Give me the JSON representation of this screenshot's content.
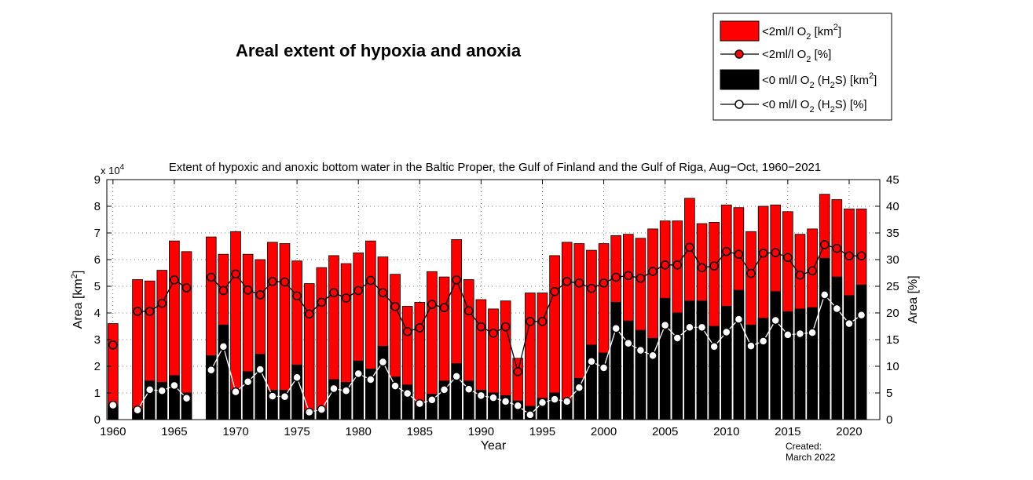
{
  "page_title": "Areal extent of hypoxia and anoxia",
  "created_label": "Created:",
  "created_date": "March 2022",
  "legend": {
    "red_area": {
      "main": "<2ml/l O",
      "sub": "2",
      "tail1": " [km",
      "sup": "2",
      "tail2": "]"
    },
    "red_pct": {
      "main": "<2ml/l O",
      "sub": "2",
      "tail": " [%]"
    },
    "black_area": {
      "main": "<0 ml/l O",
      "sub1": "2",
      "mid": " (H",
      "sub2": "2",
      "mid2": "S) [km",
      "sup": "2",
      "tail": "]"
    },
    "white_pct": {
      "main": "<0 ml/l O",
      "sub1": "2",
      "mid": " (H",
      "sub2": "2",
      "tail": "S) [%]"
    }
  },
  "colors": {
    "hypoxia": "#ff0000",
    "anoxia": "#000000",
    "line": "#000000",
    "white_marker": "#ffffff"
  },
  "chart_data": {
    "type": "bar",
    "title": "Extent of hypoxic and anoxic bottom water in the Baltic Proper, the Gulf of Finland and the Gulf of Riga, Aug−Oct, 1960−2021",
    "xlabel": "Year",
    "ylabel": {
      "text": "Area [km",
      "sup": "2",
      "tail": "]"
    },
    "y2label": "Area [%]",
    "multiplier_label": {
      "base": "x 10",
      "exp": "4"
    },
    "xlim": [
      1959.5,
      2022.5
    ],
    "ylim": [
      0,
      9
    ],
    "y2lim": [
      0,
      45
    ],
    "x_ticks": [
      1960,
      1965,
      1970,
      1975,
      1980,
      1985,
      1990,
      1995,
      2000,
      2005,
      2010,
      2015,
      2020
    ],
    "y_ticks": [
      0,
      1,
      2,
      3,
      4,
      5,
      6,
      7,
      8,
      9
    ],
    "y2_ticks": [
      0,
      5,
      10,
      15,
      20,
      25,
      30,
      35,
      40,
      45
    ],
    "grid": "dotted",
    "legend_position": "top-right",
    "series": [
      {
        "name": "<2ml/l O2 [km2]",
        "type": "bar",
        "color": "#ff0000",
        "values": [
          3.6,
          null,
          5.25,
          5.2,
          5.6,
          6.7,
          6.3,
          null,
          6.85,
          6.2,
          7.05,
          6.2,
          6.0,
          6.65,
          6.6,
          5.95,
          5.1,
          5.7,
          6.15,
          5.85,
          6.25,
          6.7,
          6.1,
          5.45,
          4.25,
          4.4,
          5.55,
          5.35,
          6.75,
          5.25,
          4.5,
          4.15,
          4.45,
          2.3,
          4.75,
          4.75,
          6.15,
          6.65,
          6.6,
          6.35,
          6.6,
          6.9,
          6.95,
          6.8,
          7.15,
          7.45,
          7.45,
          8.3,
          7.35,
          7.4,
          8.05,
          7.95,
          7.05,
          8.0,
          8.05,
          7.8,
          6.95,
          7.15,
          8.45,
          8.25,
          7.9,
          7.9
        ]
      },
      {
        "name": "<0 ml/l O2 (H2S) [km2]",
        "type": "bar",
        "color": "#000000",
        "values": [
          0.5,
          null,
          0.4,
          1.45,
          1.4,
          1.65,
          1.0,
          null,
          2.4,
          3.55,
          1.1,
          1.8,
          2.45,
          1.1,
          1.1,
          2.05,
          0.3,
          0.35,
          1.5,
          1.4,
          2.2,
          1.9,
          2.75,
          1.6,
          1.3,
          0.6,
          0.95,
          1.45,
          2.1,
          1.45,
          1.1,
          1.0,
          0.9,
          0.7,
          0.5,
          0.8,
          1.0,
          0.7,
          1.55,
          2.8,
          2.5,
          4.4,
          3.7,
          3.35,
          3.05,
          4.55,
          4.0,
          4.45,
          4.45,
          3.5,
          4.25,
          4.85,
          3.55,
          3.8,
          4.8,
          4.05,
          4.15,
          4.2,
          6.05,
          5.35,
          4.65,
          5.05
        ]
      },
      {
        "name": "<2ml/l O2 [%]",
        "type": "line",
        "color": "#ff0000",
        "values": [
          14.0,
          null,
          20.3,
          20.3,
          21.8,
          26.2,
          24.7,
          null,
          26.7,
          24.2,
          27.3,
          24.3,
          23.4,
          25.9,
          25.8,
          23.2,
          19.8,
          22.0,
          23.8,
          22.8,
          24.2,
          26.1,
          23.8,
          21.2,
          16.5,
          17.2,
          21.6,
          21.0,
          26.2,
          20.4,
          17.4,
          16.2,
          17.4,
          9.0,
          18.4,
          18.4,
          24.0,
          25.9,
          25.6,
          24.6,
          25.6,
          26.7,
          27.0,
          26.5,
          27.8,
          29.0,
          29.0,
          32.3,
          28.5,
          28.8,
          31.5,
          31.0,
          27.4,
          31.2,
          31.3,
          30.4,
          27.1,
          27.9,
          32.8,
          32.1,
          30.7,
          30.7
        ]
      },
      {
        "name": "<0 ml/l O2 (H2S) [%]",
        "type": "line",
        "color": "#ffffff",
        "values": [
          2.7,
          null,
          1.8,
          5.6,
          5.4,
          6.4,
          4.0,
          null,
          9.3,
          13.7,
          5.2,
          7.1,
          9.4,
          4.4,
          4.3,
          7.9,
          1.4,
          1.9,
          5.8,
          5.4,
          8.6,
          7.5,
          10.8,
          6.3,
          4.9,
          3.0,
          3.7,
          5.6,
          8.1,
          5.7,
          4.5,
          4.1,
          3.4,
          2.6,
          0.9,
          3.2,
          3.8,
          3.4,
          6.0,
          10.9,
          9.7,
          17.1,
          14.3,
          13.0,
          12.0,
          17.7,
          15.3,
          17.3,
          17.3,
          13.7,
          16.4,
          18.8,
          13.8,
          14.7,
          18.6,
          15.9,
          16.1,
          16.3,
          23.4,
          20.8,
          18.0,
          19.6
        ]
      }
    ],
    "years": [
      1960,
      1961,
      1962,
      1963,
      1964,
      1965,
      1966,
      1967,
      1968,
      1969,
      1970,
      1971,
      1972,
      1973,
      1974,
      1975,
      1976,
      1977,
      1978,
      1979,
      1980,
      1981,
      1982,
      1983,
      1984,
      1985,
      1986,
      1987,
      1988,
      1989,
      1990,
      1991,
      1992,
      1993,
      1994,
      1995,
      1996,
      1997,
      1998,
      1999,
      2000,
      2001,
      2002,
      2003,
      2004,
      2005,
      2006,
      2007,
      2008,
      2009,
      2010,
      2011,
      2012,
      2013,
      2014,
      2015,
      2016,
      2017,
      2018,
      2019,
      2020,
      2021
    ]
  }
}
